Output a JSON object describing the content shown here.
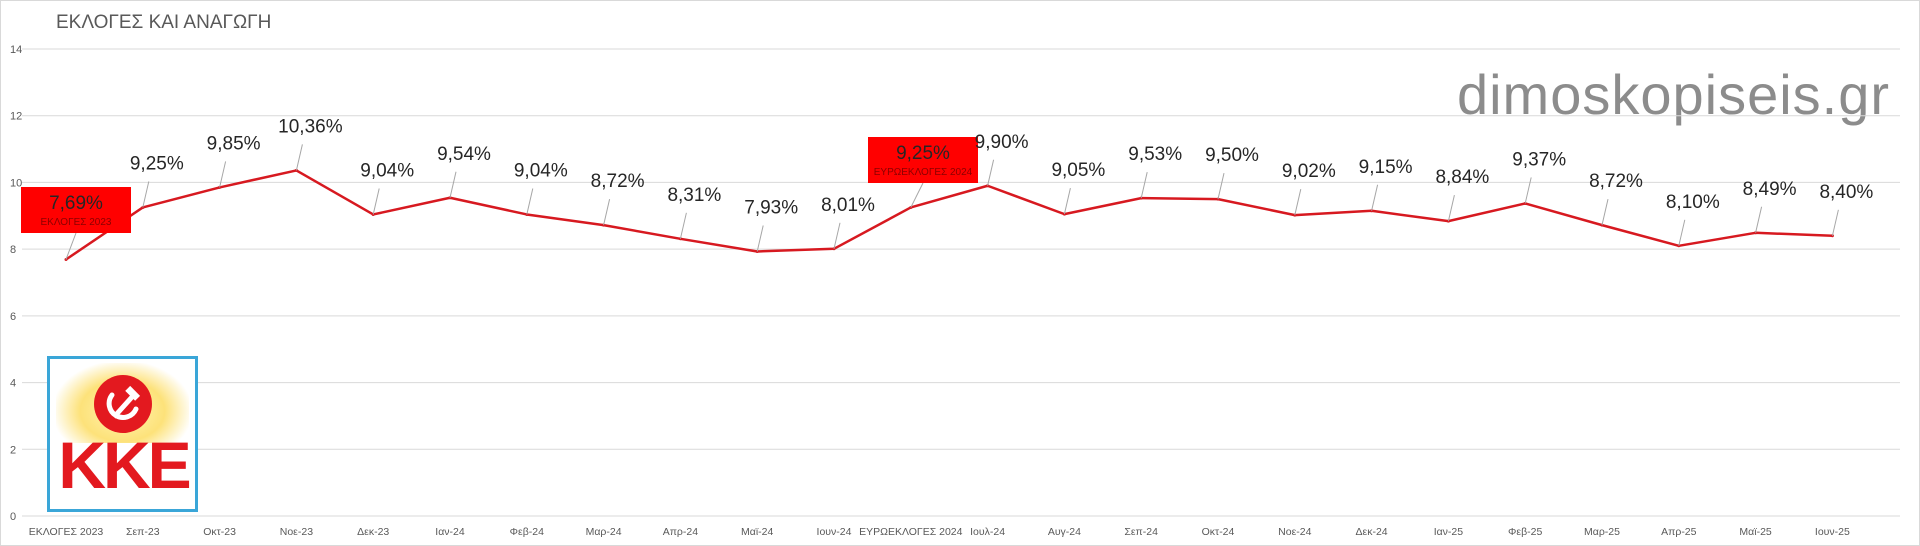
{
  "title": "ΕΚΛΟΓΕΣ ΚΑΙ ΑΝΑΓΩΓΗ",
  "watermark": "dimoskopiseis.gr",
  "logo_text": "KKE",
  "colors": {
    "line": "#d71920",
    "highlight_box": "#ff0000",
    "grid": "#d9d9d9",
    "logo_border": "#3aa6d8"
  },
  "chart_data": {
    "type": "line",
    "title": "ΕΚΛΟΓΕΣ ΚΑΙ ΑΝΑΓΩΓΗ",
    "categories": [
      "ΕΚΛΟΓΕΣ 2023",
      "Σεπ-23",
      "Οκτ-23",
      "Νοε-23",
      "Δεκ-23",
      "Ιαν-24",
      "Φεβ-24",
      "Μαρ-24",
      "Απρ-24",
      "Μαϊ-24",
      "Ιουν-24",
      "ΕΥΡΩΕΚΛΟΓΕΣ 2024",
      "Ιουλ-24",
      "Αυγ-24",
      "Σεπ-24",
      "Οκτ-24",
      "Νοε-24",
      "Δεκ-24",
      "Ιαν-25",
      "Φεβ-25",
      "Μαρ-25",
      "Απρ-25",
      "Μαϊ-25",
      "Ιουν-25"
    ],
    "values": [
      7.69,
      9.25,
      9.85,
      10.36,
      9.04,
      9.54,
      9.04,
      8.72,
      8.31,
      7.93,
      8.01,
      9.25,
      9.9,
      9.05,
      9.53,
      9.5,
      9.02,
      9.15,
      8.84,
      9.37,
      8.72,
      8.1,
      8.49,
      8.4
    ],
    "data_labels": [
      "7,69%",
      "9,25%",
      "9,85%",
      "10,36%",
      "9,04%",
      "9,54%",
      "9,04%",
      "8,72%",
      "8,31%",
      "7,93%",
      "8,01%",
      "9,25%",
      "9,90%",
      "9,05%",
      "9,53%",
      "9,50%",
      "9,02%",
      "9,15%",
      "8,84%",
      "9,37%",
      "8,72%",
      "8,10%",
      "8,49%",
      "8,40%"
    ],
    "highlight_notes": [
      {
        "index": 0,
        "text": "ΕΚΛΟΓΕΣ 2023"
      },
      {
        "index": 11,
        "text": "ΕΥΡΩΕΚΛΟΓΕΣ 2024"
      }
    ],
    "y_ticks": [
      "0",
      "2",
      "4",
      "6",
      "8",
      "10",
      "12",
      "14"
    ],
    "ylim": [
      0,
      14
    ],
    "grid": true,
    "legend": "none"
  }
}
